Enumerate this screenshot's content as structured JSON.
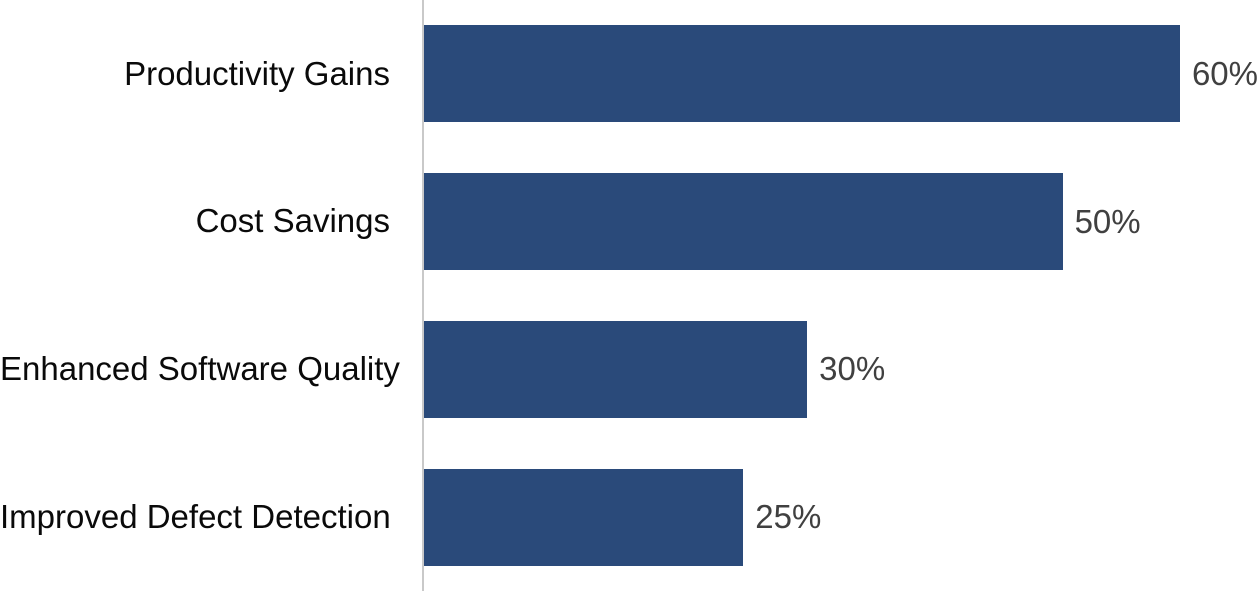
{
  "chart_data": {
    "type": "bar",
    "orientation": "horizontal",
    "title": "",
    "xlabel": "",
    "ylabel": "",
    "categories": [
      "Productivity Gains",
      "Cost Savings",
      "Enhanced Software Quality",
      "Improved Defect Detection"
    ],
    "values": [
      60,
      50,
      30,
      25
    ],
    "value_labels": [
      "60%",
      "50%",
      "30%",
      "25%"
    ],
    "xlim": [
      0,
      65.3
    ],
    "grid": false,
    "legend": null,
    "bar_color": "#2a4a7a",
    "axis_line_color": "#c9c9c9",
    "category_label_color": "#0a0a0a",
    "value_label_color": "#404040"
  }
}
